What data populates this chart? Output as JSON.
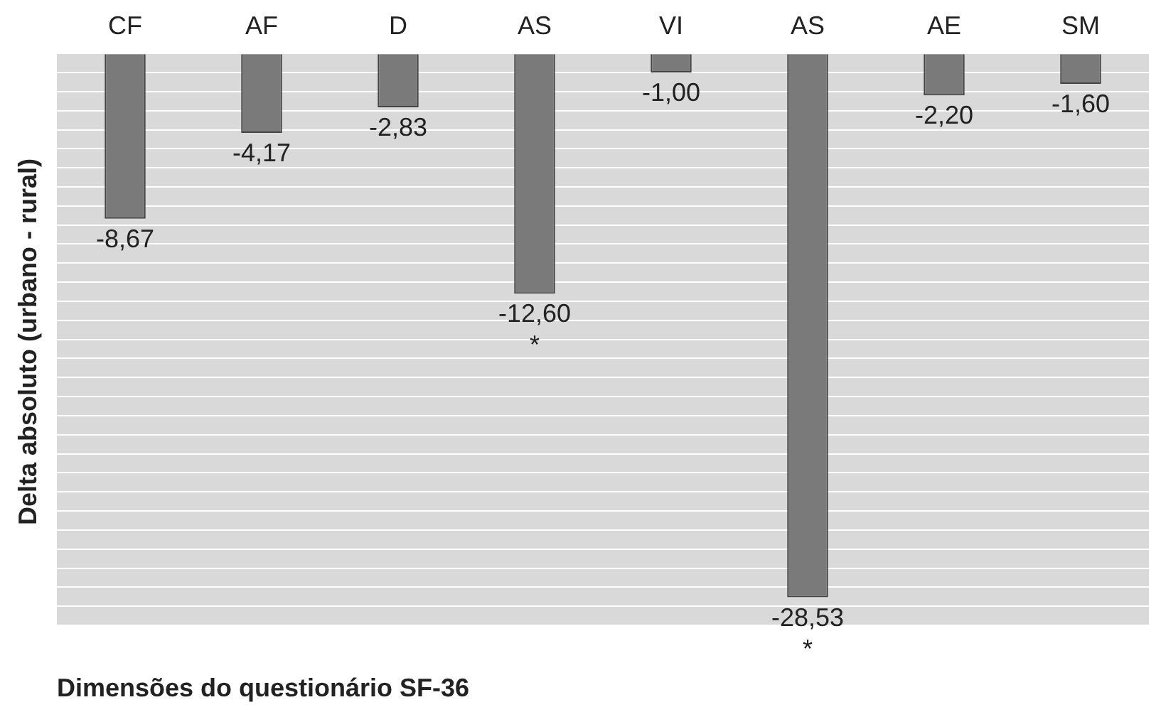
{
  "chart_data": {
    "type": "bar",
    "xlabel": "Dimensões do questionário SF-36",
    "ylabel": "Delta absoluto (urbano - rural)",
    "categories": [
      "CF",
      "AF",
      "D",
      "AS",
      "VI",
      "AS",
      "AE",
      "SM"
    ],
    "values": [
      -8.67,
      -4.17,
      -2.83,
      -12.6,
      -1.0,
      -28.53,
      -2.2,
      -1.6
    ],
    "value_labels": [
      "-8,67",
      "-4,17",
      "-2,83",
      "-12,60",
      "-1,00",
      "-28,53",
      "-2,20",
      "-1,60"
    ],
    "color": "#7a7a7a",
    "ylim": [
      -30,
      0
    ],
    "yticks": [
      {
        "value": -30,
        "label": null
      },
      {
        "value": -29,
        "label": null
      },
      {
        "value": -28,
        "label": null
      },
      {
        "value": -27,
        "label": null
      },
      {
        "value": -26,
        "label": null
      },
      {
        "value": -25,
        "label": null
      },
      {
        "value": -24,
        "label": null
      },
      {
        "value": -23,
        "label": null
      },
      {
        "value": -22,
        "label": null
      },
      {
        "value": -21,
        "label": null
      },
      {
        "value": -20,
        "label": null
      },
      {
        "value": -19,
        "label": null
      },
      {
        "value": -18,
        "label": null
      },
      {
        "value": -17,
        "label": null
      },
      {
        "value": -16,
        "label": null
      },
      {
        "value": -15,
        "label": null
      },
      {
        "value": -14,
        "label": null
      },
      {
        "value": -13,
        "label": null
      },
      {
        "value": -12,
        "label": null
      },
      {
        "value": -11,
        "label": null
      },
      {
        "value": -10,
        "label": null
      },
      {
        "value": -9,
        "label": null
      },
      {
        "value": -8,
        "label": null
      },
      {
        "value": -7,
        "label": null
      },
      {
        "value": -6,
        "label": null
      },
      {
        "value": -5,
        "label": null
      },
      {
        "value": -4,
        "label": null
      },
      {
        "value": -3,
        "label": null
      },
      {
        "value": -2,
        "label": null
      },
      {
        "value": -1,
        "label": null
      },
      {
        "value": 0,
        "label": null
      }
    ],
    "grid": "y",
    "tick_labels": "x",
    "legend": false,
    "annotations": [
      {
        "text": "*",
        "y": -12.6
      },
      {
        "text": "*",
        "y": -28.53
      }
    ]
  }
}
